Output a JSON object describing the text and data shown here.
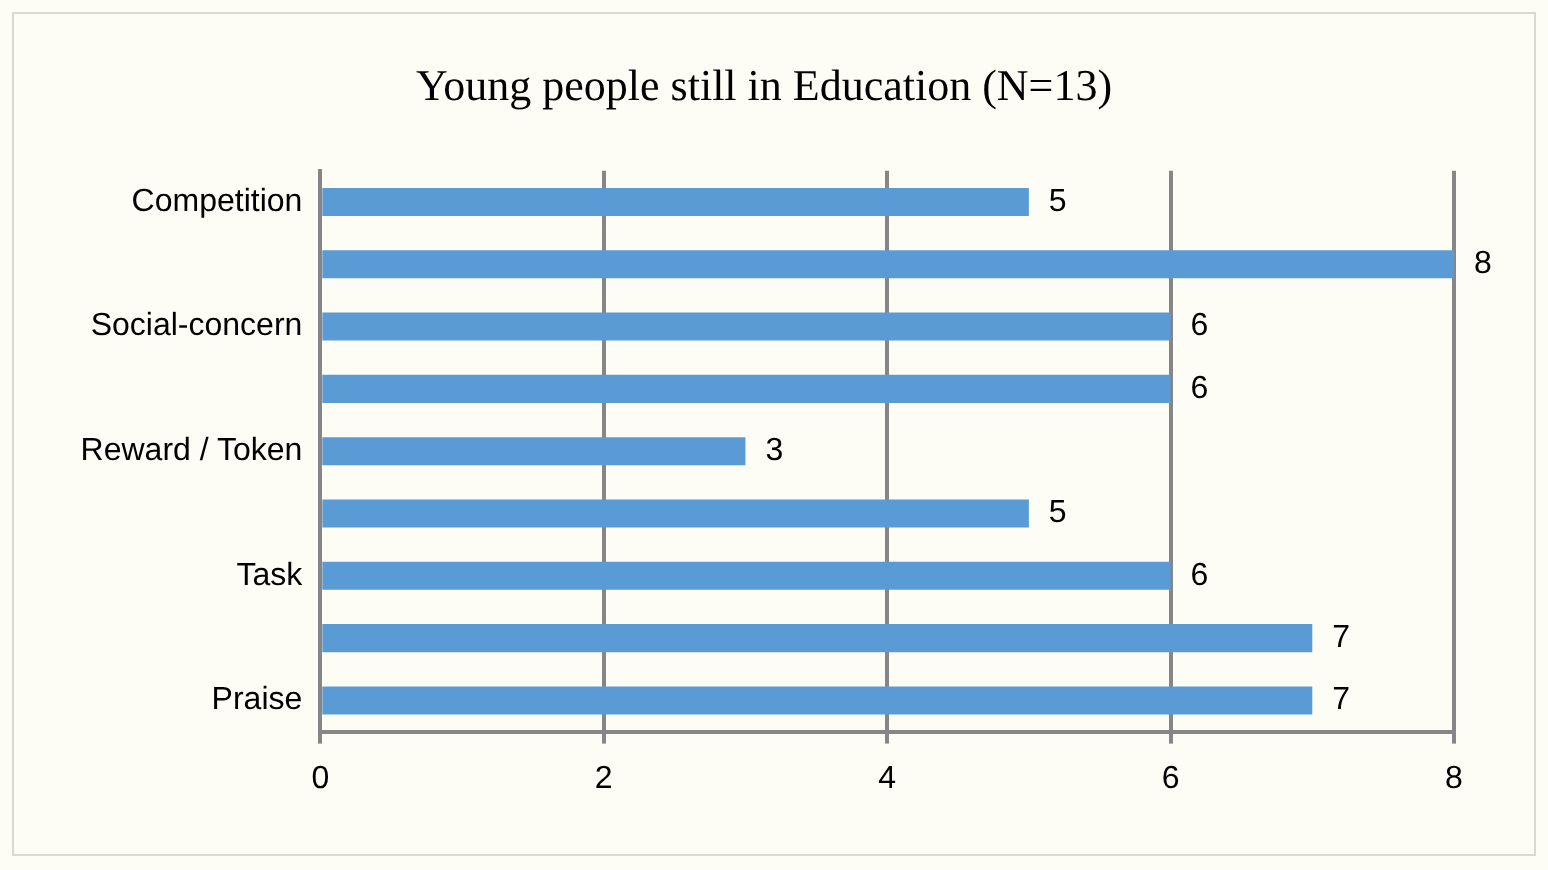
{
  "chart_data": {
    "type": "bar",
    "orientation": "horizontal",
    "title": "Young people still in Education (N=13)",
    "categories": [
      "Competition",
      null,
      "Social-concern",
      null,
      "Reward / Token",
      null,
      "Task",
      null,
      "Praise"
    ],
    "values": [
      5,
      8,
      6,
      6,
      3,
      5,
      6,
      7,
      7
    ],
    "color": "#5b9bd5",
    "xlim": [
      0,
      8
    ],
    "xticks": [
      0,
      2,
      4,
      6,
      8
    ],
    "grid": "x",
    "data_labels": true
  }
}
